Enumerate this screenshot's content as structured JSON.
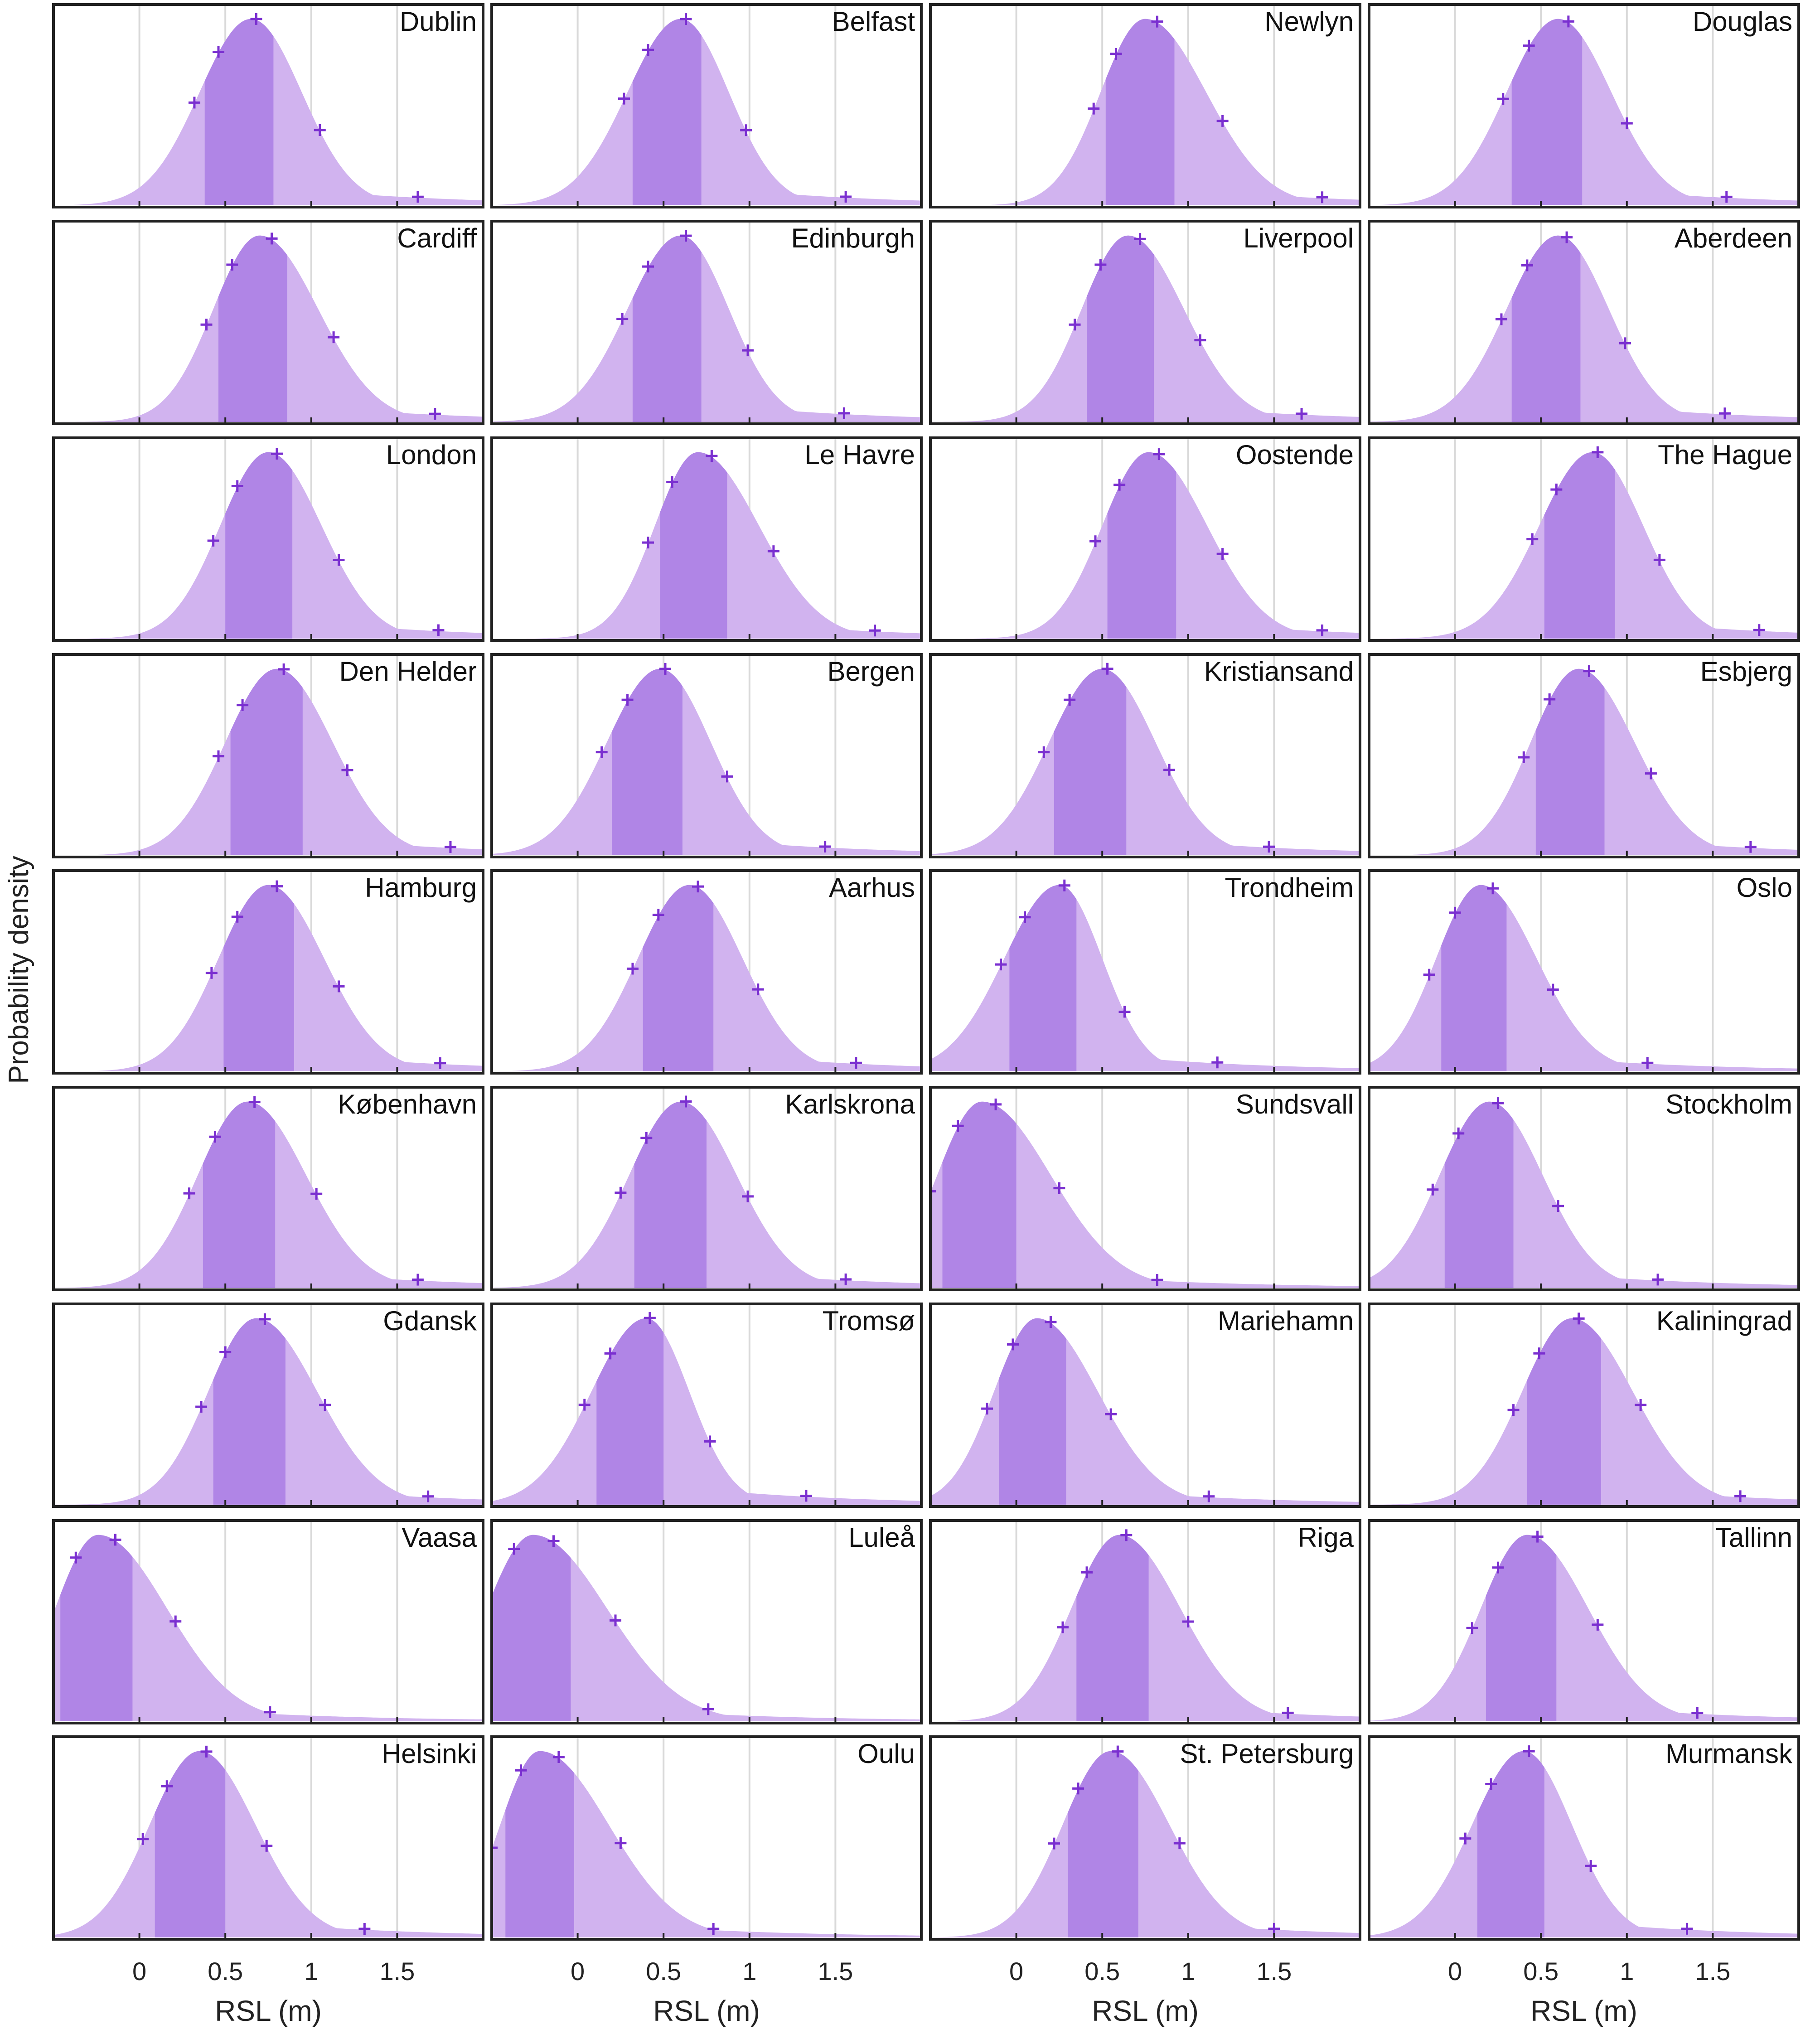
{
  "figure": {
    "ylabel": "Probability density",
    "xlabel": "RSL (m)",
    "xticks": [
      0,
      0.5,
      1,
      1.5
    ],
    "tick_labels": [
      "0",
      "0.5",
      "1",
      "1.5"
    ]
  },
  "colors": {
    "light_fill": "#d1b3ef",
    "dark_fill": "#b085e6",
    "marker": "#7a2fd0",
    "frame": "#222222",
    "grid": "#d9d9d9"
  },
  "chart_data": {
    "type": "area",
    "xlim": [
      -0.5,
      2.0
    ],
    "grid": true,
    "description_of_marks": "kernel density of projected RSL per station; darker band = central interval; '+' markers at selected quantiles",
    "panels": [
      {
        "name": "Dublin",
        "mode": 0.65,
        "lo": 0.38,
        "hi": 0.78,
        "q": [
          0.32,
          0.46,
          0.68,
          1.05,
          1.62
        ]
      },
      {
        "name": "Belfast",
        "mode": 0.6,
        "lo": 0.32,
        "hi": 0.72,
        "q": [
          0.27,
          0.41,
          0.63,
          0.98,
          1.56
        ]
      },
      {
        "name": "Newlyn",
        "mode": 0.75,
        "lo": 0.52,
        "hi": 0.92,
        "q": [
          0.45,
          0.58,
          0.82,
          1.2,
          1.78
        ]
      },
      {
        "name": "Douglas",
        "mode": 0.6,
        "lo": 0.33,
        "hi": 0.74,
        "q": [
          0.28,
          0.43,
          0.66,
          1.0,
          1.58
        ]
      },
      {
        "name": "Cardiff",
        "mode": 0.7,
        "lo": 0.46,
        "hi": 0.86,
        "q": [
          0.39,
          0.54,
          0.77,
          1.13,
          1.72
        ]
      },
      {
        "name": "Edinburgh",
        "mode": 0.6,
        "lo": 0.32,
        "hi": 0.72,
        "q": [
          0.26,
          0.41,
          0.63,
          0.99,
          1.55
        ]
      },
      {
        "name": "Liverpool",
        "mode": 0.65,
        "lo": 0.41,
        "hi": 0.8,
        "q": [
          0.34,
          0.49,
          0.72,
          1.07,
          1.66
        ]
      },
      {
        "name": "Aberdeen",
        "mode": 0.6,
        "lo": 0.33,
        "hi": 0.73,
        "q": [
          0.27,
          0.42,
          0.65,
          0.99,
          1.57
        ]
      },
      {
        "name": "London",
        "mode": 0.75,
        "lo": 0.5,
        "hi": 0.89,
        "q": [
          0.43,
          0.57,
          0.8,
          1.16,
          1.74
        ]
      },
      {
        "name": "Le Havre",
        "mode": 0.7,
        "lo": 0.48,
        "hi": 0.87,
        "q": [
          0.41,
          0.55,
          0.78,
          1.14,
          1.73
        ]
      },
      {
        "name": "Oostende",
        "mode": 0.77,
        "lo": 0.53,
        "hi": 0.93,
        "q": [
          0.46,
          0.6,
          0.83,
          1.2,
          1.78
        ]
      },
      {
        "name": "The Hague",
        "mode": 0.8,
        "lo": 0.52,
        "hi": 0.93,
        "q": [
          0.45,
          0.59,
          0.83,
          1.19,
          1.77
        ]
      },
      {
        "name": "Den Helder",
        "mode": 0.8,
        "lo": 0.53,
        "hi": 0.95,
        "q": [
          0.46,
          0.6,
          0.84,
          1.21,
          1.81
        ]
      },
      {
        "name": "Bergen",
        "mode": 0.48,
        "lo": 0.2,
        "hi": 0.61,
        "q": [
          0.14,
          0.29,
          0.51,
          0.87,
          1.44
        ]
      },
      {
        "name": "Kristiansand",
        "mode": 0.5,
        "lo": 0.22,
        "hi": 0.64,
        "q": [
          0.16,
          0.31,
          0.53,
          0.89,
          1.47
        ]
      },
      {
        "name": "Esbjerg",
        "mode": 0.72,
        "lo": 0.47,
        "hi": 0.87,
        "q": [
          0.4,
          0.55,
          0.78,
          1.14,
          1.72
        ]
      },
      {
        "name": "Hamburg",
        "mode": 0.75,
        "lo": 0.49,
        "hi": 0.9,
        "q": [
          0.42,
          0.57,
          0.8,
          1.16,
          1.75
        ]
      },
      {
        "name": "Aarhus",
        "mode": 0.65,
        "lo": 0.38,
        "hi": 0.79,
        "q": [
          0.32,
          0.47,
          0.7,
          1.05,
          1.62
        ]
      },
      {
        "name": "Trondheim",
        "mode": 0.25,
        "lo": -0.04,
        "hi": 0.35,
        "q": [
          -0.09,
          0.05,
          0.28,
          0.63,
          1.17
        ]
      },
      {
        "name": "Oslo",
        "mode": 0.15,
        "lo": -0.08,
        "hi": 0.3,
        "q": [
          -0.15,
          0.0,
          0.22,
          0.57,
          1.12
        ]
      },
      {
        "name": "København",
        "mode": 0.63,
        "lo": 0.37,
        "hi": 0.79,
        "q": [
          0.29,
          0.44,
          0.67,
          1.03,
          1.62
        ]
      },
      {
        "name": "Karlskrona",
        "mode": 0.6,
        "lo": 0.33,
        "hi": 0.75,
        "q": [
          0.25,
          0.4,
          0.63,
          0.99,
          1.56
        ]
      },
      {
        "name": "Sundsvall",
        "mode": -0.2,
        "lo": -0.43,
        "hi": 0.0,
        "q": [
          -0.5,
          -0.34,
          -0.12,
          0.25,
          0.82
        ]
      },
      {
        "name": "Stockholm",
        "mode": 0.2,
        "lo": -0.06,
        "hi": 0.34,
        "q": [
          -0.13,
          0.02,
          0.25,
          0.6,
          1.18
        ]
      },
      {
        "name": "Gdansk",
        "mode": 0.68,
        "lo": 0.43,
        "hi": 0.85,
        "q": [
          0.36,
          0.5,
          0.73,
          1.08,
          1.68
        ]
      },
      {
        "name": "Tromsø",
        "mode": 0.4,
        "lo": 0.11,
        "hi": 0.5,
        "q": [
          0.04,
          0.19,
          0.42,
          0.77,
          1.33
        ]
      },
      {
        "name": "Mariehamn",
        "mode": 0.12,
        "lo": -0.1,
        "hi": 0.29,
        "q": [
          -0.17,
          -0.02,
          0.2,
          0.55,
          1.12
        ]
      },
      {
        "name": "Kaliningrad",
        "mode": 0.68,
        "lo": 0.42,
        "hi": 0.85,
        "q": [
          0.34,
          0.49,
          0.72,
          1.08,
          1.66
        ]
      },
      {
        "name": "Vaasa",
        "mode": -0.24,
        "lo": -0.46,
        "hi": -0.04,
        "q": [
          -0.37,
          -0.14,
          0.21,
          0.76,
          null
        ]
      },
      {
        "name": "Luleå",
        "mode": -0.26,
        "lo": -0.5,
        "hi": -0.04,
        "q": [
          -0.37,
          -0.14,
          0.22,
          0.76,
          null
        ]
      },
      {
        "name": "Riga",
        "mode": 0.6,
        "lo": 0.35,
        "hi": 0.77,
        "q": [
          0.27,
          0.41,
          0.64,
          1.0,
          1.58
        ]
      },
      {
        "name": "Tallinn",
        "mode": 0.42,
        "lo": 0.18,
        "hi": 0.59,
        "q": [
          0.1,
          0.25,
          0.48,
          0.83,
          1.41
        ]
      },
      {
        "name": "Helsinki",
        "mode": 0.35,
        "lo": 0.09,
        "hi": 0.5,
        "q": [
          0.02,
          0.16,
          0.39,
          0.74,
          1.31
        ]
      },
      {
        "name": "Oulu",
        "mode": -0.22,
        "lo": -0.42,
        "hi": -0.02,
        "q": [
          -0.5,
          -0.33,
          -0.11,
          0.25,
          0.79
        ]
      },
      {
        "name": "St. Petersburg",
        "mode": 0.55,
        "lo": 0.3,
        "hi": 0.71,
        "q": [
          0.22,
          0.36,
          0.59,
          0.95,
          1.5
        ]
      },
      {
        "name": "Murmansk",
        "mode": 0.4,
        "lo": 0.13,
        "hi": 0.52,
        "q": [
          0.06,
          0.21,
          0.43,
          0.79,
          1.35
        ]
      }
    ]
  }
}
